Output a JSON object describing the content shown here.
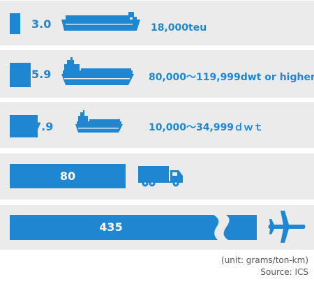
{
  "chart_data": {
    "type": "bar",
    "orientation": "horizontal",
    "axis_break": "last bar",
    "unit": "(unit: grams/ton-km)",
    "source": "Source: ICS",
    "colors": {
      "bar": "#1f86d2",
      "row_background": "#ebebeb",
      "text_on_bar": "#ffffff"
    },
    "items": [
      {
        "value": 3.0,
        "label": "3.0",
        "caption": "18,000teu",
        "icon": "container-ship-icon"
      },
      {
        "value": 5.9,
        "label": "5.9",
        "caption": "80,000～119,999dwt or higher",
        "icon": "tanker-ship-icon"
      },
      {
        "value": 7.9,
        "label": "7.9",
        "caption": "10,000～34,999ｄｗｔ",
        "icon": "small-ship-icon"
      },
      {
        "value": 80,
        "label": "80",
        "caption": "",
        "icon": "truck-icon"
      },
      {
        "value": 435,
        "label": "435",
        "caption": "",
        "icon": "airplane-icon"
      }
    ]
  }
}
